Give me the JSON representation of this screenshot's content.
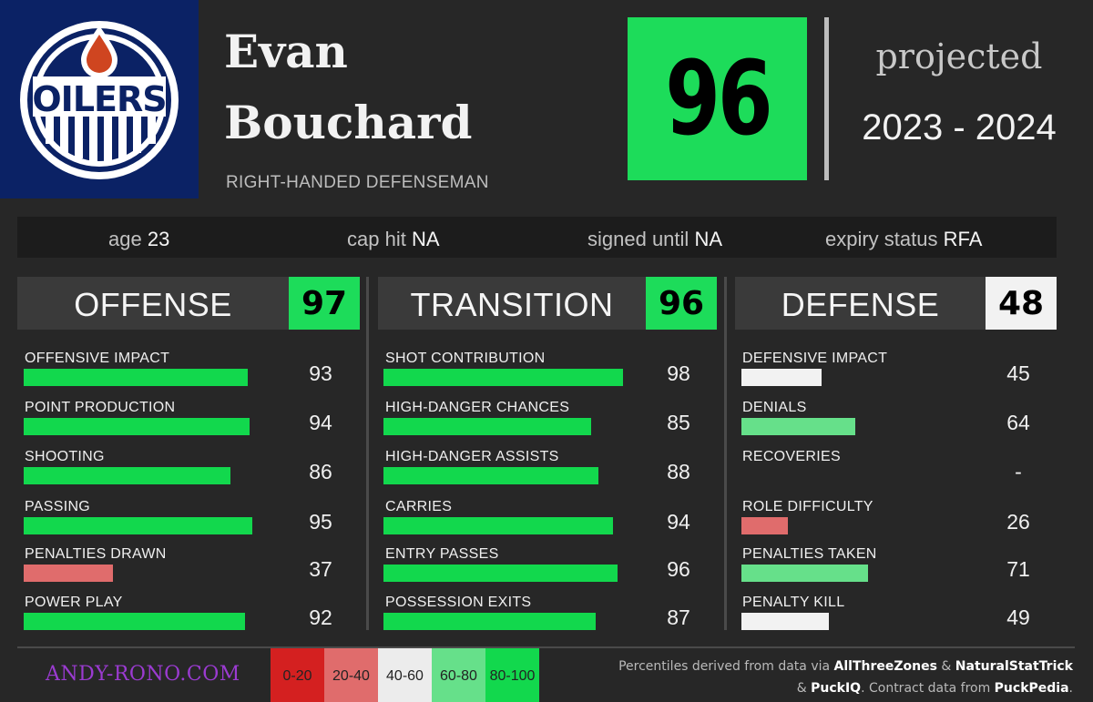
{
  "team": {
    "logo_icon": "oilers-logo-icon",
    "logo_text": "OILERS",
    "background_color": "#0b2265",
    "accent_color": "#cf4520"
  },
  "player": {
    "first_name": "Evan",
    "last_name": "Bouchard",
    "position": "RIGHT-HANDED DEFENSEMAN"
  },
  "overall": {
    "score": "96",
    "color": "#1ddc5a"
  },
  "projection": {
    "label": "projected",
    "season": "2023 - 2024"
  },
  "info": [
    {
      "label": "age",
      "value": "23"
    },
    {
      "label": "cap hit",
      "value": "NA"
    },
    {
      "label": "signed until",
      "value": "NA"
    },
    {
      "label": "expiry status",
      "value": "RFA"
    }
  ],
  "sections": [
    {
      "title": "OFFENSE",
      "score": "97",
      "score_color": "#1ddc5a",
      "metrics": [
        {
          "label": "OFFENSIVE IMPACT",
          "value": "93",
          "percentile": 93,
          "color": "#12d84d"
        },
        {
          "label": "POINT PRODUCTION",
          "value": "94",
          "percentile": 94,
          "color": "#12d84d"
        },
        {
          "label": "SHOOTING",
          "value": "86",
          "percentile": 86,
          "color": "#12d84d"
        },
        {
          "label": "PASSING",
          "value": "95",
          "percentile": 95,
          "color": "#12d84d"
        },
        {
          "label": "PENALTIES DRAWN",
          "value": "37",
          "percentile": 37,
          "color": "#e06c6c"
        },
        {
          "label": "POWER PLAY",
          "value": "92",
          "percentile": 92,
          "color": "#12d84d"
        }
      ]
    },
    {
      "title": "TRANSITION",
      "score": "96",
      "score_color": "#1ddc5a",
      "metrics": [
        {
          "label": "SHOT CONTRIBUTION",
          "value": "98",
          "percentile": 98,
          "color": "#12d84d"
        },
        {
          "label": "HIGH-DANGER CHANCES",
          "value": "85",
          "percentile": 85,
          "color": "#12d84d"
        },
        {
          "label": "HIGH-DANGER ASSISTS",
          "value": "88",
          "percentile": 88,
          "color": "#12d84d"
        },
        {
          "label": "CARRIES",
          "value": "94",
          "percentile": 94,
          "color": "#12d84d"
        },
        {
          "label": "ENTRY PASSES",
          "value": "96",
          "percentile": 96,
          "color": "#12d84d"
        },
        {
          "label": "POSSESSION EXITS",
          "value": "87",
          "percentile": 87,
          "color": "#12d84d"
        }
      ]
    },
    {
      "title": "DEFENSE",
      "score": "48",
      "score_color": "#f2f2f2",
      "metrics": [
        {
          "label": "DEFENSIVE IMPACT",
          "value": "45",
          "percentile": 45,
          "color": "#f2f2f2"
        },
        {
          "label": "DENIALS",
          "value": "64",
          "percentile": 64,
          "color": "#66e08a"
        },
        {
          "label": "RECOVERIES",
          "value": "-",
          "percentile": 0,
          "color": "#272727"
        },
        {
          "label": "ROLE DIFFICULTY",
          "value": "26",
          "percentile": 26,
          "color": "#e06c6c"
        },
        {
          "label": "PENALTIES TAKEN",
          "value": "71",
          "percentile": 71,
          "color": "#66e08a"
        },
        {
          "label": "PENALTY KILL",
          "value": "49",
          "percentile": 49,
          "color": "#f2f2f2"
        }
      ]
    }
  ],
  "footer": {
    "website": "ANDY-RONO.COM",
    "legend": [
      {
        "label": "0-20",
        "color": "#d42020"
      },
      {
        "label": "20-40",
        "color": "#e06c6c"
      },
      {
        "label": "40-60",
        "color": "#ececec"
      },
      {
        "label": "60-80",
        "color": "#66e08a"
      },
      {
        "label": "80-100",
        "color": "#12d84d"
      }
    ],
    "credits_line1_prefix": "Percentiles derived from data via",
    "source1": "AllThreeZones",
    "amp1": "&",
    "source2": "NaturalStatTrick",
    "amp2": "&",
    "source3": "PuckIQ",
    "credits_line2_mid": ". Contract data from",
    "source4": "PuckPedia",
    "period": "."
  }
}
